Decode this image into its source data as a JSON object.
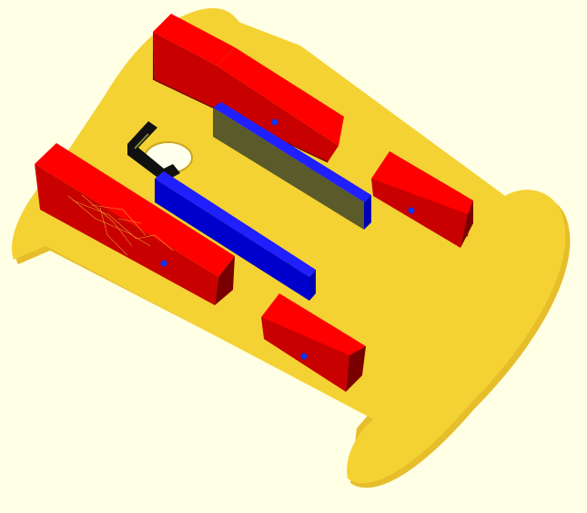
{
  "viewport": {
    "background": "#ffffe5"
  },
  "colors": {
    "plate_top": "#f6d232",
    "plate_edge": "#e3b92a",
    "plate_shadow": "#c89f20",
    "red_front": "#ff0000",
    "red_side": "#c80000",
    "red_dark": "#7a0000",
    "blue_top": "#1f1fff",
    "blue_side": "#0000b4",
    "olive_face": "#5a5a2a",
    "black_bracket": "#101010",
    "hole": "#ffffee"
  },
  "scene": {
    "objects": [
      {
        "name": "base-plate",
        "kind": "plate"
      },
      {
        "name": "motor-block-back-left",
        "kind": "red-block"
      },
      {
        "name": "motor-block-front-left",
        "kind": "red-block"
      },
      {
        "name": "motor-block-back-right",
        "kind": "red-block"
      },
      {
        "name": "motor-block-front-right",
        "kind": "red-block"
      },
      {
        "name": "blue-rail-back",
        "kind": "blue-rail"
      },
      {
        "name": "blue-rail-front",
        "kind": "blue-rail"
      },
      {
        "name": "l-bracket",
        "kind": "bracket"
      },
      {
        "name": "mount-hole",
        "kind": "hole"
      }
    ]
  }
}
